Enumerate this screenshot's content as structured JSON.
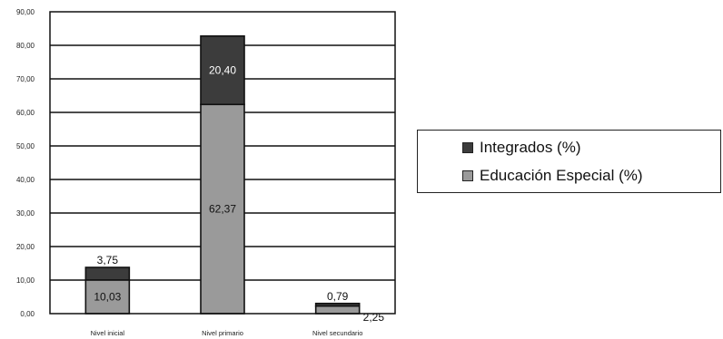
{
  "chart_data": {
    "type": "bar",
    "stacked": true,
    "categories": [
      "Nivel inicial",
      "Nivel primario",
      "Nivel secundario"
    ],
    "series": [
      {
        "name": "Educación Especial (%)",
        "values": [
          10.03,
          62.37,
          2.25
        ],
        "labels": [
          "10,03",
          "62,37",
          "2,25"
        ],
        "color": "#9a9a9a"
      },
      {
        "name": "Integrados (%)",
        "values": [
          3.75,
          20.4,
          0.79
        ],
        "labels": [
          "3,75",
          "20,40",
          "0,79"
        ],
        "color": "#3c3c3c"
      }
    ],
    "y_ticks": [
      "0,00",
      "10,00",
      "20,00",
      "30,00",
      "40,00",
      "50,00",
      "60,00",
      "70,00",
      "80,00",
      "90,00"
    ],
    "ylim": [
      0,
      90
    ],
    "grid": true,
    "legend_position": "right"
  },
  "legend": {
    "items": [
      {
        "label": "Integrados (%)",
        "color": "#3c3c3c"
      },
      {
        "label": "Educación Especial (%)",
        "color": "#9a9a9a"
      }
    ]
  }
}
